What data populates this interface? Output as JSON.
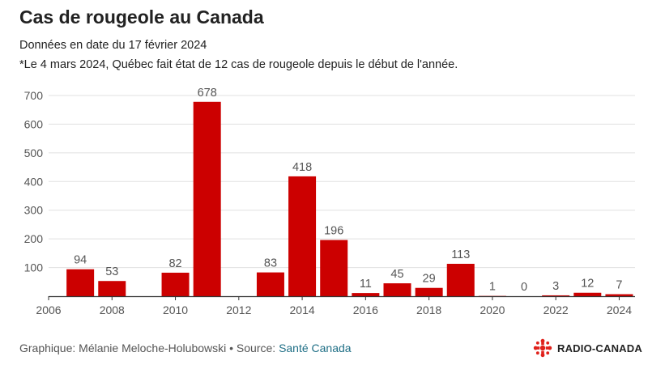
{
  "header": {
    "title": "Cas de rougeole au Canada",
    "subtitle": "Données en date du 17 février 2024",
    "note": "*Le 4 mars 2024, Québec fait état de 12 cas de rougeole depuis le début de l'année."
  },
  "footer": {
    "credit": "Graphique: Mélanie Meloche-Holubowski • Source: ",
    "source": "Santé Canada",
    "logo_text": "RADIO-CANADA"
  },
  "colors": {
    "bar": "#cc0000",
    "grid": "#e0e0e0",
    "axis": "#333333",
    "tick_text": "#555555",
    "logo": "#e0211b"
  },
  "chart_data": {
    "type": "bar",
    "x": [
      2007,
      2008,
      2010,
      2011,
      2013,
      2014,
      2015,
      2016,
      2017,
      2018,
      2019,
      2020,
      2021,
      2022,
      2023,
      2024
    ],
    "values": [
      94,
      53,
      82,
      678,
      83,
      418,
      196,
      11,
      45,
      29,
      113,
      1,
      0,
      3,
      12,
      7
    ],
    "data_labels": [
      "94",
      "53",
      "82",
      "678",
      "83",
      "418",
      "196",
      "11",
      "45",
      "29",
      "113",
      "1",
      "0",
      "3",
      "12",
      "7"
    ],
    "xticks": [
      "2006",
      "2008",
      "2010",
      "2012",
      "2014",
      "2016",
      "2018",
      "2020",
      "2022",
      "2024"
    ],
    "yticks": [
      "100",
      "200",
      "300",
      "400",
      "500",
      "600",
      "700"
    ],
    "xlim": [
      2006,
      2024.5
    ],
    "ylim": [
      0,
      700
    ],
    "grid": true,
    "legend": "none"
  }
}
